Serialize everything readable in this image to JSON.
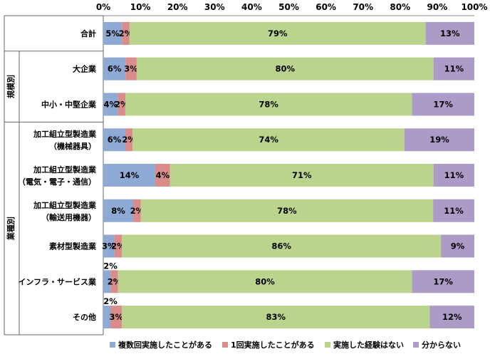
{
  "chart_data": {
    "type": "bar",
    "orientation": "horizontal",
    "stacked": "percent",
    "x_ticks": [
      "0%",
      "10%",
      "20%",
      "30%",
      "40%",
      "50%",
      "60%",
      "70%",
      "80%",
      "90%",
      "100%"
    ],
    "xlim": [
      0,
      100
    ],
    "legend_position": "bottom",
    "groups": [
      {
        "label": "",
        "categories": [
          "合計"
        ]
      },
      {
        "label": "規模別",
        "categories": [
          "大企業",
          "中小・中堅企業"
        ]
      },
      {
        "label": "業種別",
        "categories": [
          "加工組立型製造業（機械器具）",
          "加工組立型製造業（電気・電子・通信）",
          "加工組立型製造業（輸送用機器）",
          "素材型製造業",
          "インフラ・サービス業",
          "その他"
        ]
      }
    ],
    "categories": [
      [
        "合計"
      ],
      [
        "大企業"
      ],
      [
        "中小・中堅企業"
      ],
      [
        "加工組立型製造業",
        "（機械器具）"
      ],
      [
        "加工組立型製造業",
        "（電気・電子・通信）"
      ],
      [
        "加工組立型製造業",
        "（輸送用機器）"
      ],
      [
        "素材型製造業"
      ],
      [
        "インフラ・サービス業"
      ],
      [
        "その他"
      ]
    ],
    "series": [
      {
        "name": "複数回実施したことがある",
        "color": "#8eaad4",
        "values": [
          5,
          6,
          4,
          6,
          14,
          8,
          3,
          2,
          2
        ]
      },
      {
        "name": "1回実施したことがある",
        "color": "#d98c8a",
        "values": [
          2,
          3,
          2,
          2,
          4,
          2,
          2,
          2,
          3
        ]
      },
      {
        "name": "実施した経験はない",
        "color": "#bad48e",
        "values": [
          79,
          80,
          78,
          74,
          71,
          78,
          86,
          80,
          83
        ]
      },
      {
        "name": "分からない",
        "color": "#ab9bc6",
        "values": [
          13,
          11,
          17,
          19,
          11,
          11,
          9,
          17,
          12
        ]
      }
    ],
    "data_labels": [
      [
        "5%",
        "2%",
        "79%",
        "13%"
      ],
      [
        "6%",
        "3%",
        "80%",
        "11%"
      ],
      [
        "4%",
        "2%",
        "78%",
        "17%"
      ],
      [
        "6%",
        "2%",
        "74%",
        "19%"
      ],
      [
        "14%",
        "4%",
        "71%",
        "11%"
      ],
      [
        "8%",
        "2%",
        "78%",
        "11%"
      ],
      [
        "3%",
        "2%",
        "86%",
        "9%"
      ],
      [
        "2%",
        "2%",
        "80%",
        "17%"
      ],
      [
        "2%",
        "3%",
        "83%",
        "12%"
      ]
    ]
  }
}
